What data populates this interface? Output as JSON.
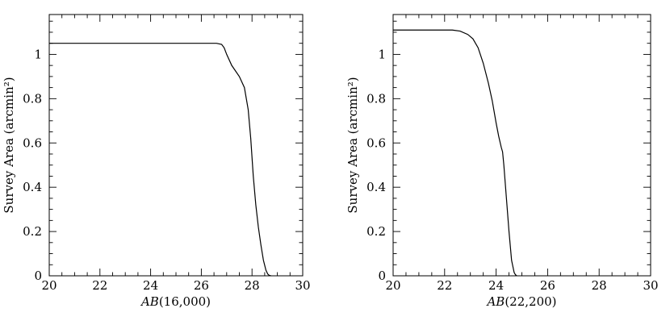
{
  "chart_data": [
    {
      "type": "line",
      "xlabel": {
        "italic": "AB",
        "rest": "(16,000)"
      },
      "ylabel": "Survey Area (arcmin²)",
      "xlim": [
        20,
        30
      ],
      "ylim": [
        0,
        1.18
      ],
      "x_ticks": [
        "20",
        "22",
        "24",
        "26",
        "28",
        "30"
      ],
      "y_ticks": [
        "0",
        "0.2",
        "0.4",
        "0.6",
        "0.8",
        "1"
      ],
      "series": [
        {
          "x": [
            20.0,
            26.3,
            26.6,
            26.8,
            26.9,
            27.0,
            27.2,
            27.5,
            27.7,
            27.85,
            27.95,
            28.05,
            28.15,
            28.25,
            28.35,
            28.45,
            28.55,
            28.62,
            28.68,
            28.75
          ],
          "y": [
            1.05,
            1.05,
            1.05,
            1.045,
            1.03,
            1.0,
            0.95,
            0.9,
            0.85,
            0.75,
            0.62,
            0.45,
            0.32,
            0.22,
            0.14,
            0.07,
            0.025,
            0.008,
            0.002,
            0.0
          ]
        }
      ]
    },
    {
      "type": "line",
      "xlabel": {
        "italic": "AB",
        "rest": "(22,200)"
      },
      "ylabel": "Survey Area (arcmin²)",
      "xlim": [
        20,
        30
      ],
      "ylim": [
        0,
        1.18
      ],
      "x_ticks": [
        "20",
        "22",
        "24",
        "26",
        "28",
        "30"
      ],
      "y_ticks": [
        "0",
        "0.2",
        "0.4",
        "0.6",
        "0.8",
        "1"
      ],
      "series": [
        {
          "x": [
            20.0,
            22.3,
            22.6,
            22.9,
            23.1,
            23.3,
            23.5,
            23.7,
            23.85,
            24.0,
            24.1,
            24.2,
            24.25,
            24.3,
            24.4,
            24.5,
            24.6,
            24.7,
            24.75,
            24.8
          ],
          "y": [
            1.11,
            1.11,
            1.105,
            1.09,
            1.07,
            1.03,
            0.96,
            0.87,
            0.79,
            0.69,
            0.63,
            0.58,
            0.56,
            0.5,
            0.35,
            0.2,
            0.07,
            0.015,
            0.005,
            0.0
          ]
        }
      ]
    }
  ]
}
